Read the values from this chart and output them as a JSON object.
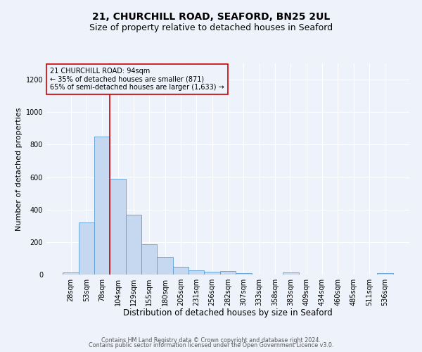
{
  "title1": "21, CHURCHILL ROAD, SEAFORD, BN25 2UL",
  "title2": "Size of property relative to detached houses in Seaford",
  "xlabel": "Distribution of detached houses by size in Seaford",
  "ylabel": "Number of detached properties",
  "bar_labels": [
    "28sqm",
    "53sqm",
    "78sqm",
    "104sqm",
    "129sqm",
    "155sqm",
    "180sqm",
    "205sqm",
    "231sqm",
    "256sqm",
    "282sqm",
    "307sqm",
    "333sqm",
    "358sqm",
    "383sqm",
    "409sqm",
    "434sqm",
    "460sqm",
    "485sqm",
    "511sqm",
    "536sqm"
  ],
  "bar_values": [
    15,
    320,
    850,
    590,
    370,
    185,
    107,
    48,
    25,
    18,
    23,
    10,
    0,
    0,
    12,
    0,
    0,
    0,
    0,
    0,
    10
  ],
  "bar_color": "#c5d8f0",
  "bar_edgecolor": "#5a9fd4",
  "vline_color": "#cc0000",
  "vline_position": 2.5,
  "annotation_text": "21 CHURCHILL ROAD: 94sqm\n← 35% of detached houses are smaller (871)\n65% of semi-detached houses are larger (1,633) →",
  "annotation_box_edgecolor": "#cc0000",
  "ylim": [
    0,
    1300
  ],
  "yticks": [
    0,
    200,
    400,
    600,
    800,
    1000,
    1200
  ],
  "footer1": "Contains HM Land Registry data © Crown copyright and database right 2024.",
  "footer2": "Contains public sector information licensed under the Open Government Licence v3.0.",
  "bg_color": "#eef2fa",
  "grid_color": "#ffffff",
  "title1_fontsize": 10,
  "title2_fontsize": 9,
  "xlabel_fontsize": 8.5,
  "ylabel_fontsize": 8,
  "tick_fontsize": 7,
  "annotation_fontsize": 7,
  "footer_fontsize": 5.8
}
